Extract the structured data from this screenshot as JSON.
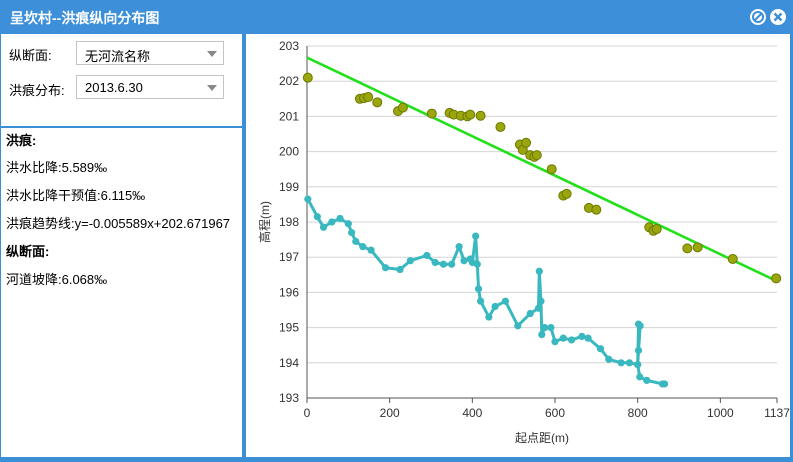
{
  "window": {
    "title": "呈坎村--洪痕纵向分布图"
  },
  "controls": {
    "section_label": "纵断面:",
    "section_value": "无河流名称",
    "flood_label": "洪痕分布:",
    "flood_value": "2013.6.30"
  },
  "info": {
    "flood_heading": "洪痕:",
    "flood_ratio": "洪水比降:5.589‰",
    "flood_ratio_intervention": "洪水比降干预值:6.115‰",
    "trend_line": "洪痕趋势线:y=-0.005589x+202.671967",
    "section_heading": "纵断面:",
    "river_slope": "河道坡降:6.068‰"
  },
  "colors": {
    "titlebar": "#3c8fd8",
    "trend": "#22e01a",
    "markers": "#9aa60c",
    "profile": "#3ab8c0"
  },
  "chart_data": {
    "type": "scatter",
    "xlabel": "起点距(m)",
    "ylabel": "高程(m)",
    "xlim": [
      0,
      1137
    ],
    "ylim": [
      193,
      203
    ],
    "x_ticks": [
      "0",
      "200",
      "400",
      "600",
      "800",
      "1000",
      "1137"
    ],
    "y_ticks": [
      "193",
      "194",
      "195",
      "196",
      "197",
      "198",
      "199",
      "200",
      "201",
      "202",
      "203"
    ],
    "grid": true,
    "trend_line": {
      "slope": -0.005589,
      "intercept": 202.671967
    },
    "flood_marks": {
      "x": [
        2,
        128,
        138,
        148,
        170,
        220,
        232,
        302,
        345,
        355,
        372,
        388,
        395,
        420,
        468,
        515,
        522,
        530,
        540,
        550,
        556,
        592,
        620,
        628,
        682,
        700,
        828,
        838,
        846,
        920,
        945,
        1030,
        1135
      ],
      "y": [
        202.1,
        201.5,
        201.52,
        201.55,
        201.4,
        201.15,
        201.25,
        201.08,
        201.1,
        201.05,
        201.02,
        201.0,
        201.05,
        201.02,
        200.7,
        200.2,
        200.05,
        200.25,
        199.9,
        199.85,
        199.9,
        199.5,
        198.75,
        198.8,
        198.4,
        198.35,
        197.85,
        197.75,
        197.8,
        197.25,
        197.28,
        196.95,
        196.4
      ]
    },
    "river_profile": {
      "x": [
        2,
        25,
        40,
        60,
        80,
        100,
        108,
        118,
        135,
        155,
        190,
        225,
        250,
        290,
        310,
        330,
        350,
        368,
        380,
        395,
        400,
        408,
        412,
        415,
        420,
        440,
        455,
        480,
        510,
        540,
        560,
        562,
        566,
        568,
        575,
        590,
        600,
        620,
        640,
        665,
        680,
        710,
        730,
        760,
        780,
        800,
        802,
        806,
        802,
        800,
        805,
        822,
        860,
        865
      ],
      "y": [
        198.65,
        198.15,
        197.85,
        198.0,
        198.1,
        197.95,
        197.7,
        197.45,
        197.3,
        197.2,
        196.7,
        196.65,
        196.9,
        197.05,
        196.85,
        196.8,
        196.8,
        197.3,
        196.9,
        196.95,
        196.85,
        197.6,
        196.8,
        196.1,
        195.75,
        195.3,
        195.6,
        195.75,
        195.05,
        195.4,
        195.55,
        196.6,
        195.75,
        194.8,
        195.0,
        195.0,
        194.6,
        194.7,
        194.65,
        194.75,
        194.7,
        194.4,
        194.1,
        194.0,
        194.0,
        193.95,
        195.1,
        195.05,
        194.35,
        193.95,
        193.6,
        193.5,
        193.4,
        193.4
      ]
    }
  }
}
